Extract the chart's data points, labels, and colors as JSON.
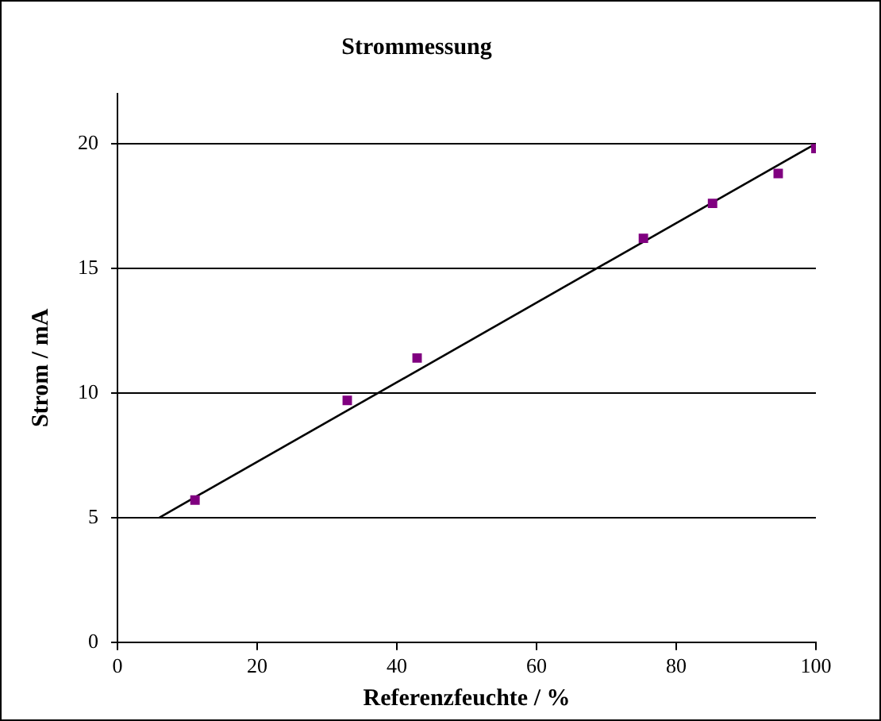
{
  "chart_data": {
    "type": "scatter",
    "title": "Strommessung",
    "xlabel": "Referenzfeuchte / %",
    "ylabel": "Strom / mA",
    "xlim": [
      0,
      100
    ],
    "xticks": [
      0,
      20,
      40,
      60,
      80,
      100
    ],
    "ylim": [
      0,
      22
    ],
    "yticks": [
      0,
      5,
      10,
      15,
      20
    ],
    "grid": "y",
    "legend": false,
    "marker": "square",
    "series": [
      {
        "type": "scatter",
        "color": "#800080",
        "x": [
          11.1,
          32.9,
          42.9,
          75.3,
          85.2,
          94.6,
          100
        ],
        "values": [
          5.7,
          9.7,
          11.4,
          16.2,
          17.6,
          18.8,
          19.8
        ]
      },
      {
        "type": "line",
        "color": "#000000",
        "marker": "none",
        "line_style": "solid",
        "x": [
          6,
          100
        ],
        "values": [
          5,
          20
        ]
      }
    ]
  }
}
